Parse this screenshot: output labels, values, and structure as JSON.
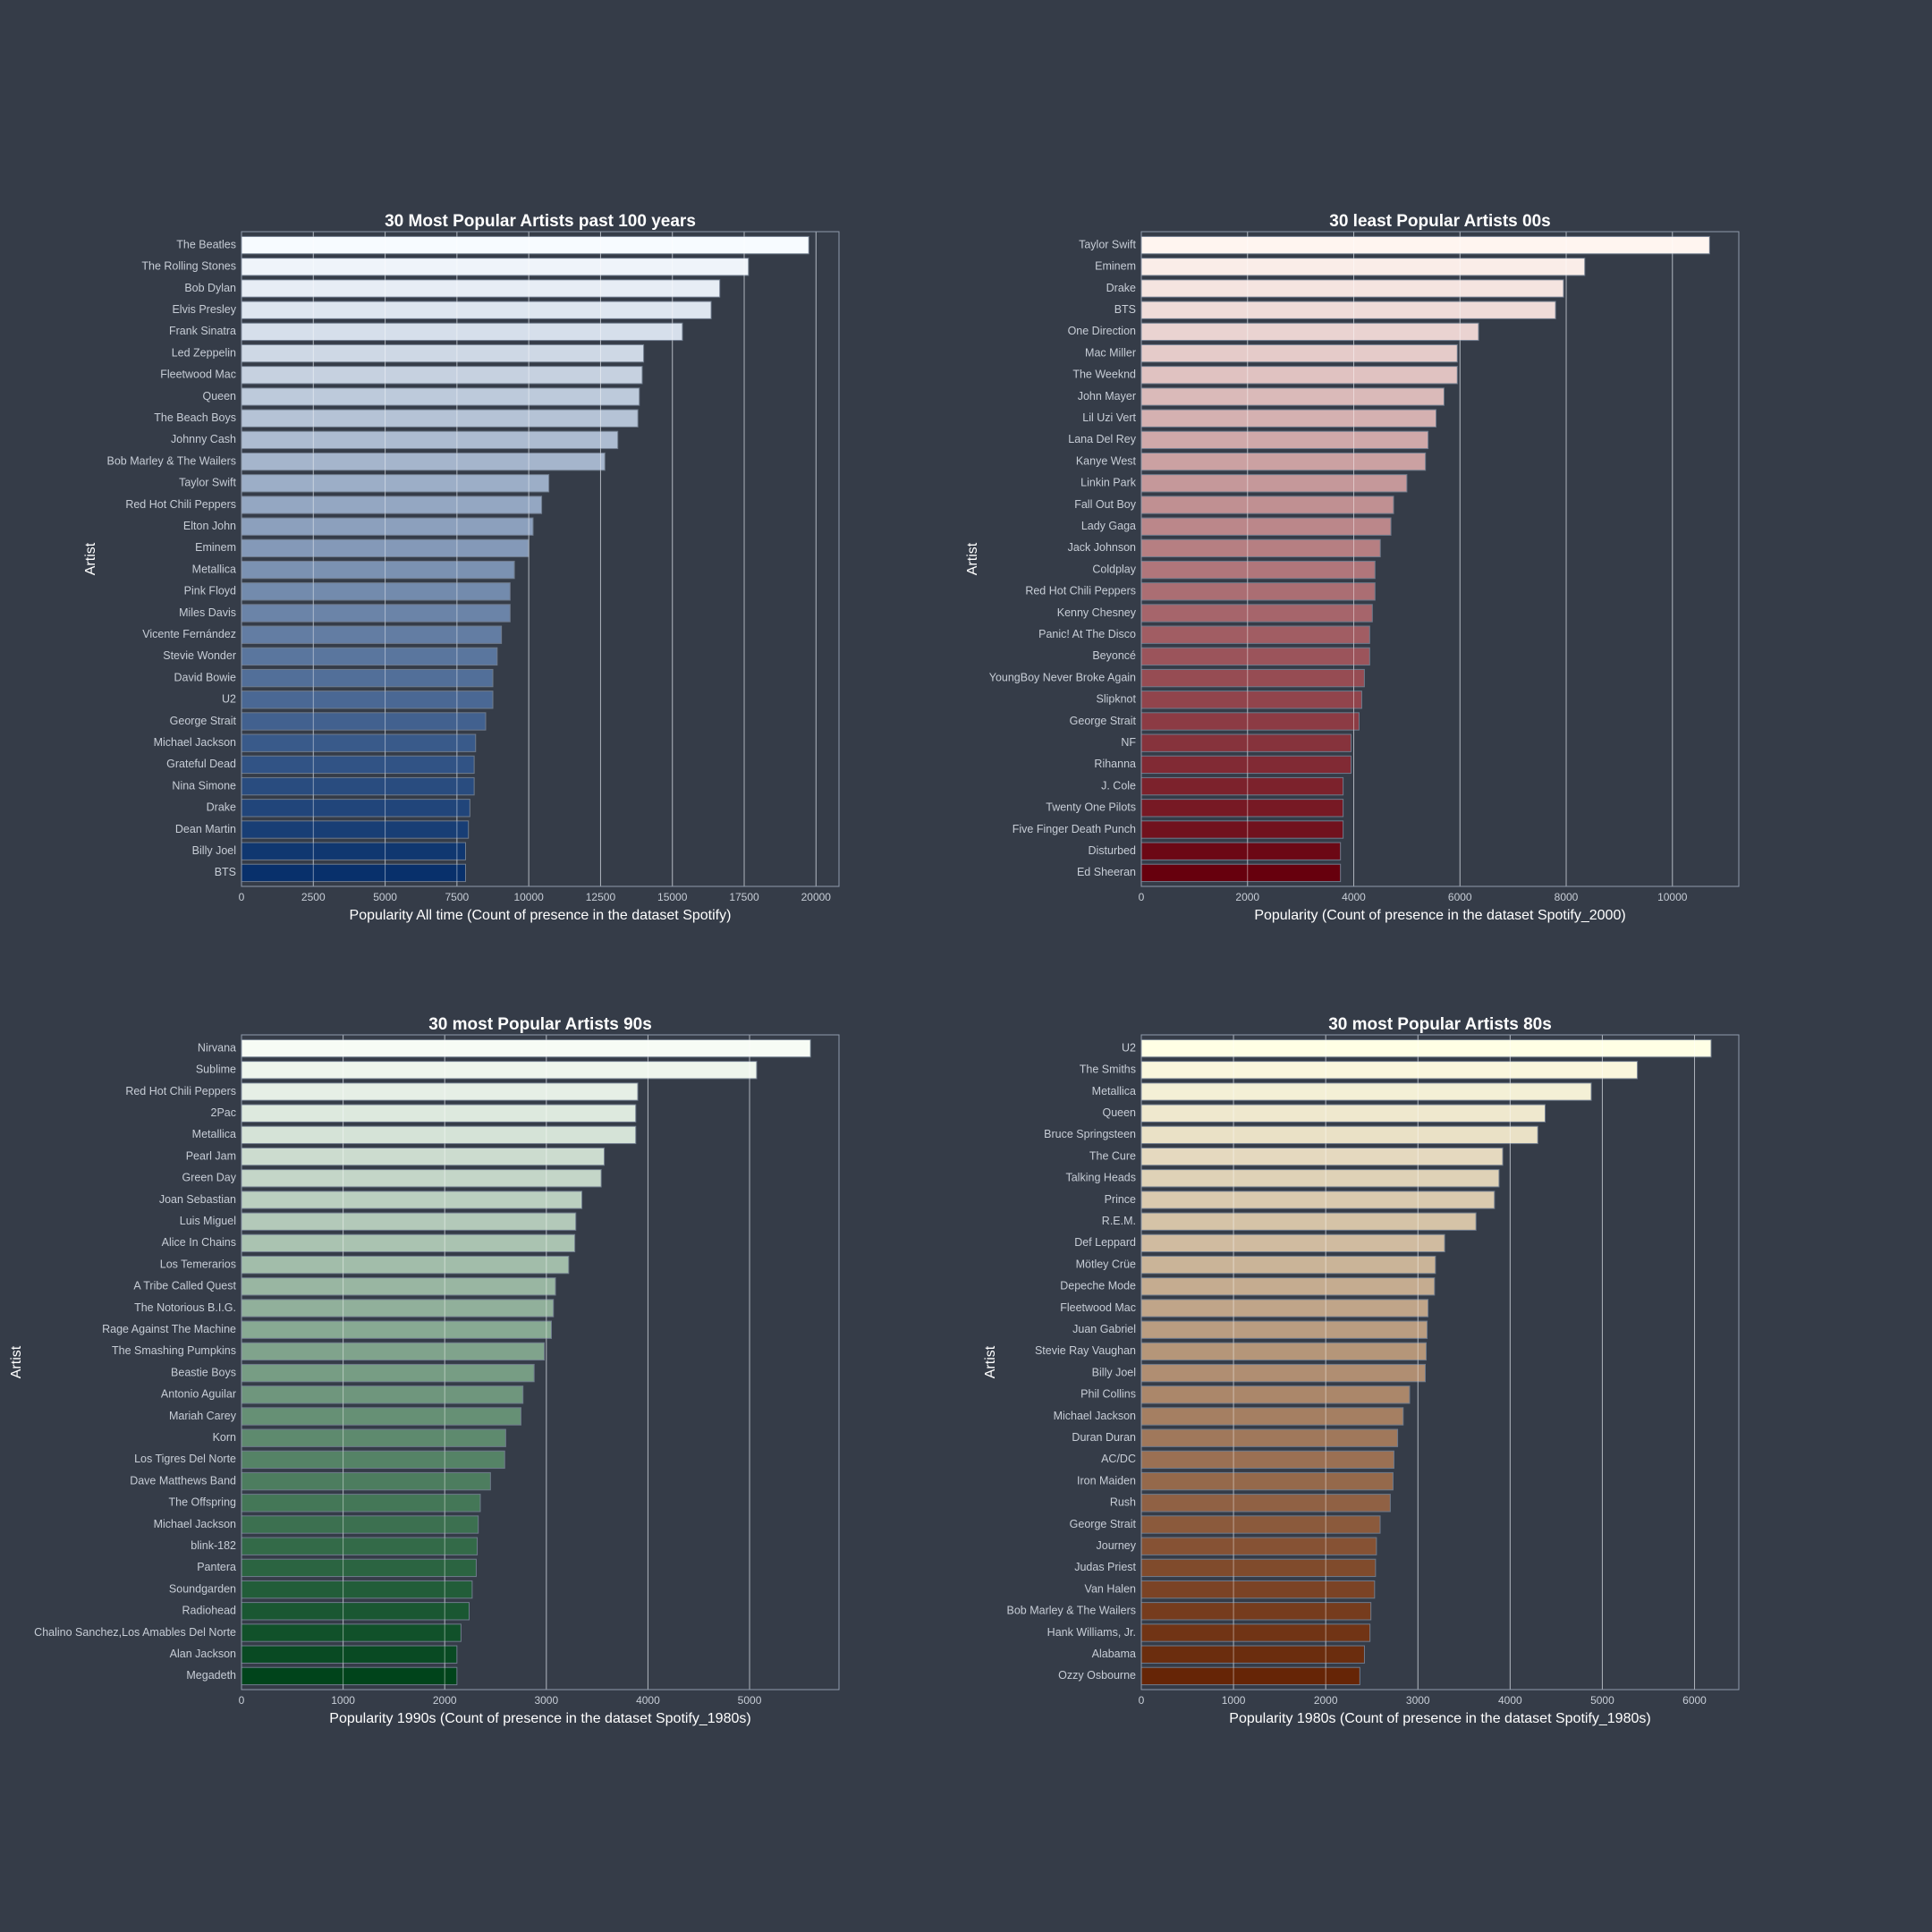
{
  "figure": {
    "background": "#353c48"
  },
  "chart_data": [
    {
      "type": "bar",
      "orientation": "horizontal",
      "title": "30 Most Popular Artists past 100 years",
      "xlabel": "Popularity All time (Count of presence in the dataset Spotify)",
      "ylabel": "Artist",
      "xlim": [
        0,
        20800
      ],
      "xticks": [
        0,
        2500,
        5000,
        7500,
        10000,
        12500,
        15000,
        17500,
        20000
      ],
      "grid": true,
      "palette": "Blues",
      "colors": [
        "#f7fbff",
        "#08306b"
      ],
      "categories": [
        "The Beatles",
        "The Rolling Stones",
        "Bob Dylan",
        "Elvis Presley",
        "Frank Sinatra",
        "Led Zeppelin",
        "Fleetwood Mac",
        "Queen",
        "The Beach Boys",
        "Johnny Cash",
        "Bob Marley & The Wailers",
        "Taylor Swift",
        "Red Hot Chili Peppers",
        "Elton John",
        "Eminem",
        "Metallica",
        "Pink Floyd",
        "Miles Davis",
        "Vicente Fernández",
        "Stevie Wonder",
        "David Bowie",
        "U2",
        "George Strait",
        "Michael Jackson",
        "Grateful Dead",
        "Nina Simone",
        "Drake",
        "Dean Martin",
        "Billy Joel",
        "BTS"
      ],
      "values": [
        19750,
        17650,
        16650,
        16350,
        15350,
        14000,
        13950,
        13850,
        13800,
        13100,
        12650,
        10700,
        10450,
        10150,
        10000,
        9500,
        9350,
        9350,
        9050,
        8900,
        8750,
        8750,
        8500,
        8150,
        8100,
        8100,
        7950,
        7900,
        7800,
        7800
      ]
    },
    {
      "type": "bar",
      "orientation": "horizontal",
      "title": "30 least Popular Artists 00s",
      "xlabel": "Popularity (Count of presence in the dataset Spotify_2000)",
      "ylabel": "Artist",
      "xlim": [
        0,
        11250
      ],
      "xticks": [
        0,
        2000,
        4000,
        6000,
        8000,
        10000
      ],
      "grid": true,
      "palette": "Reds",
      "colors": [
        "#fff5f0",
        "#67000d"
      ],
      "categories": [
        "Taylor Swift",
        "Eminem",
        "Drake",
        "BTS",
        "One Direction",
        "Mac Miller",
        "The Weeknd",
        "John Mayer",
        "Lil Uzi Vert",
        "Lana Del Rey",
        "Kanye West",
        "Linkin Park",
        "Fall Out Boy",
        "Lady Gaga",
        "Jack Johnson",
        "Coldplay",
        "Red Hot Chili Peppers",
        "Kenny Chesney",
        "Panic! At The Disco",
        "Beyoncé",
        "YoungBoy Never Broke Again",
        "Slipknot",
        "George Strait",
        "NF",
        "Rihanna",
        "J. Cole",
        "Twenty One Pilots",
        "Five Finger Death Punch",
        "Disturbed",
        "Ed Sheeran"
      ],
      "values": [
        10700,
        8350,
        7950,
        7800,
        6350,
        5950,
        5950,
        5700,
        5550,
        5400,
        5350,
        5000,
        4750,
        4700,
        4500,
        4400,
        4400,
        4350,
        4300,
        4300,
        4200,
        4150,
        4100,
        3950,
        3950,
        3800,
        3800,
        3800,
        3750,
        3750
      ]
    },
    {
      "type": "bar",
      "orientation": "horizontal",
      "title": "30 most Popular Artists 90s",
      "xlabel": "Popularity 1990s (Count of presence in the dataset Spotify_1980s)",
      "ylabel": "Artist",
      "xlim": [
        0,
        5880
      ],
      "xticks": [
        0,
        1000,
        2000,
        3000,
        4000,
        5000
      ],
      "grid": true,
      "palette": "Greens",
      "colors": [
        "#f7fcf5",
        "#00441b"
      ],
      "categories": [
        "Nirvana",
        "Sublime",
        "Red Hot Chili Peppers",
        "2Pac",
        "Metallica",
        "Pearl Jam",
        "Green Day",
        "Joan Sebastian",
        "Luis Miguel",
        "Alice In Chains",
        "Los Temerarios",
        "A Tribe Called Quest",
        "The Notorious B.I.G.",
        "Rage Against The Machine",
        "The Smashing Pumpkins",
        "Beastie Boys",
        "Antonio Aguilar",
        "Mariah Carey",
        "Korn",
        "Los Tigres Del Norte",
        "Dave Matthews Band",
        "The Offspring",
        "Michael Jackson",
        "blink-182",
        "Pantera",
        "Soundgarden",
        "Radiohead",
        "Chalino Sanchez,Los Amables Del Norte",
        "Alan Jackson",
        "Megadeth"
      ],
      "values": [
        5600,
        5070,
        3900,
        3880,
        3880,
        3570,
        3540,
        3350,
        3290,
        3280,
        3220,
        3090,
        3070,
        3050,
        2980,
        2880,
        2770,
        2750,
        2600,
        2590,
        2450,
        2350,
        2330,
        2320,
        2310,
        2270,
        2240,
        2160,
        2120,
        2120
      ]
    },
    {
      "type": "bar",
      "orientation": "horizontal",
      "title": "30 most Popular Artists 80s",
      "xlabel": "Popularity 1980s (Count of presence in the dataset Spotify_1980s)",
      "ylabel": "Artist",
      "xlim": [
        0,
        6480
      ],
      "xticks": [
        0,
        1000,
        2000,
        3000,
        4000,
        5000,
        6000
      ],
      "grid": true,
      "palette": "YlOrBr",
      "colors": [
        "#ffffe5",
        "#662506"
      ],
      "categories": [
        "U2",
        "The Smiths",
        "Metallica",
        "Queen",
        "Bruce Springsteen",
        "The Cure",
        "Talking Heads",
        "Prince",
        "R.E.M.",
        "Def Leppard",
        "Mötley Crüe",
        "Depeche Mode",
        "Fleetwood Mac",
        "Juan Gabriel",
        "Stevie Ray Vaughan",
        "Billy Joel",
        "Phil Collins",
        "Michael Jackson",
        "Duran Duran",
        "AC/DC",
        "Iron Maiden",
        "Rush",
        "George Strait",
        "Journey",
        "Judas Priest",
        "Van Halen",
        "Bob Marley & The Wailers",
        "Hank Williams, Jr.",
        "Alabama",
        "Ozzy Osbourne"
      ],
      "values": [
        6180,
        5380,
        4880,
        4380,
        4300,
        3920,
        3880,
        3830,
        3630,
        3290,
        3190,
        3180,
        3110,
        3100,
        3090,
        3080,
        2910,
        2840,
        2780,
        2740,
        2730,
        2700,
        2590,
        2550,
        2540,
        2530,
        2490,
        2480,
        2420,
        2370
      ]
    }
  ]
}
